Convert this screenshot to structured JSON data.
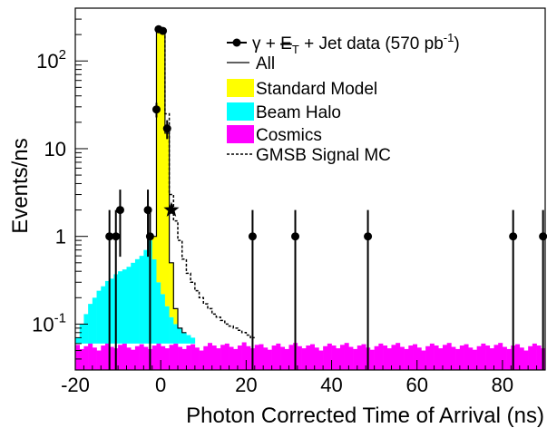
{
  "chart_data": {
    "type": "histogram",
    "xlabel": "Photon Corrected Time of Arrival (ns)",
    "ylabel": "Events/ns",
    "xlim": [
      -20,
      90
    ],
    "ylim": [
      0.03,
      400
    ],
    "yscale": "log",
    "x_ticks": [
      {
        "value": -20,
        "label": "-20"
      },
      {
        "value": 0,
        "label": "0"
      },
      {
        "value": 20,
        "label": "20"
      },
      {
        "value": 40,
        "label": "40"
      },
      {
        "value": 60,
        "label": "60"
      },
      {
        "value": 80,
        "label": "80"
      }
    ],
    "y_ticks": [
      {
        "value": 0.1,
        "base": "10",
        "exp": "-1"
      },
      {
        "value": 1,
        "base": "1",
        "exp": ""
      },
      {
        "value": 10,
        "base": "10",
        "exp": ""
      },
      {
        "value": 100,
        "base": "10",
        "exp": "2"
      }
    ],
    "legend": {
      "position": "top-right",
      "entries": [
        {
          "key": "data",
          "prefix": "γ + ",
          "met": "E",
          "met_sub": "T",
          "suffix": " + Jet data (570 pb",
          "sup": "-1",
          "tail": ")"
        },
        {
          "key": "all",
          "label": "All"
        },
        {
          "key": "sm",
          "label": "Standard Model"
        },
        {
          "key": "halo",
          "label": "Beam Halo"
        },
        {
          "key": "cosmics",
          "label": "Cosmics"
        },
        {
          "key": "gmsb",
          "label": "GMSB Signal MC"
        }
      ]
    },
    "colors": {
      "standard_model": "#ffff00",
      "beam_halo": "#00ffff",
      "cosmics": "#ff00ff",
      "all_line": "#000000",
      "gmsb_line": "#000000"
    },
    "bin_width": 1,
    "cosmics_level": 0.06,
    "cosmics_bins": [
      0.058,
      0.052,
      0.056,
      0.061,
      0.054,
      0.05,
      0.057,
      0.062,
      0.055,
      0.053,
      0.058,
      0.06,
      0.054,
      0.051,
      0.056,
      0.059,
      0.055,
      0.052,
      0.057,
      0.061,
      0.056,
      0.053,
      0.058,
      0.06,
      0.055,
      0.052,
      0.057,
      0.059,
      0.054,
      0.05,
      0.056,
      0.061,
      0.057,
      0.053,
      0.058,
      0.06,
      0.055,
      0.052,
      0.057,
      0.062,
      0.056,
      0.053,
      0.058,
      0.059,
      0.054,
      0.051,
      0.057,
      0.06,
      0.055,
      0.052,
      0.058,
      0.061,
      0.056,
      0.053,
      0.057,
      0.059,
      0.054,
      0.05,
      0.056,
      0.06,
      0.057,
      0.053,
      0.058,
      0.061,
      0.055,
      0.052,
      0.057,
      0.059,
      0.054,
      0.051,
      0.056,
      0.06,
      0.057,
      0.053,
      0.058,
      0.061,
      0.055,
      0.052,
      0.057,
      0.059,
      0.054,
      0.05,
      0.056,
      0.06,
      0.057,
      0.053,
      0.058,
      0.061,
      0.055,
      0.052,
      0.057,
      0.059,
      0.054,
      0.051,
      0.056,
      0.06,
      0.057,
      0.053,
      0.058,
      0.061,
      0.055,
      0.052,
      0.057,
      0.059,
      0.054,
      0.05,
      0.056,
      0.06,
      0.057,
      0.053
    ],
    "beam_halo_total": [
      {
        "x": -20,
        "y": 0.07
      },
      {
        "x": -19,
        "y": 0.1
      },
      {
        "x": -18,
        "y": 0.13
      },
      {
        "x": -17,
        "y": 0.17
      },
      {
        "x": -16,
        "y": 0.2
      },
      {
        "x": -15,
        "y": 0.24
      },
      {
        "x": -14,
        "y": 0.27
      },
      {
        "x": -13,
        "y": 0.31
      },
      {
        "x": -12,
        "y": 0.33
      },
      {
        "x": -11,
        "y": 0.37
      },
      {
        "x": -10,
        "y": 0.4
      },
      {
        "x": -9,
        "y": 0.42
      },
      {
        "x": -8,
        "y": 0.45
      },
      {
        "x": -7,
        "y": 0.5
      },
      {
        "x": -6,
        "y": 0.55
      },
      {
        "x": -5,
        "y": 0.6
      },
      {
        "x": -4,
        "y": 0.7
      },
      {
        "x": -3,
        "y": 0.9
      },
      {
        "x": -2,
        "y": 0.55
      },
      {
        "x": -1,
        "y": 0.3
      },
      {
        "x": 0,
        "y": 0.22
      },
      {
        "x": 1,
        "y": 0.16
      },
      {
        "x": 2,
        "y": 0.12
      },
      {
        "x": 3,
        "y": 0.1
      },
      {
        "x": 4,
        "y": 0.09
      },
      {
        "x": 5,
        "y": 0.08
      },
      {
        "x": 6,
        "y": 0.075
      },
      {
        "x": 7,
        "y": 0.07
      }
    ],
    "all_total": [
      {
        "x": -2,
        "y": 1.0
      },
      {
        "x": -1,
        "y": 220
      },
      {
        "x": 0,
        "y": 220
      },
      {
        "x": 1,
        "y": 15
      },
      {
        "x": 2,
        "y": 0.5
      },
      {
        "x": 3,
        "y": 0.15
      },
      {
        "x": 4,
        "y": 0.09
      },
      {
        "x": 5,
        "y": 0.08
      }
    ],
    "gmsb": [
      {
        "x": 0,
        "y": 220
      },
      {
        "x": 1,
        "y": 25
      },
      {
        "x": 2,
        "y": 3
      },
      {
        "x": 3,
        "y": 1.5
      },
      {
        "x": 4,
        "y": 0.9
      },
      {
        "x": 5,
        "y": 0.55
      },
      {
        "x": 6,
        "y": 0.38
      },
      {
        "x": 7,
        "y": 0.3
      },
      {
        "x": 8,
        "y": 0.24
      },
      {
        "x": 9,
        "y": 0.2
      },
      {
        "x": 10,
        "y": 0.17
      },
      {
        "x": 11,
        "y": 0.15
      },
      {
        "x": 12,
        "y": 0.13
      },
      {
        "x": 13,
        "y": 0.12
      },
      {
        "x": 14,
        "y": 0.11
      },
      {
        "x": 15,
        "y": 0.1
      },
      {
        "x": 16,
        "y": 0.095
      },
      {
        "x": 17,
        "y": 0.09
      },
      {
        "x": 18,
        "y": 0.085
      },
      {
        "x": 19,
        "y": 0.08
      },
      {
        "x": 20,
        "y": 0.075
      },
      {
        "x": 21,
        "y": 0.07
      }
    ],
    "data_points": [
      {
        "x": -12,
        "y": 1
      },
      {
        "x": -10.5,
        "y": 1
      },
      {
        "x": -9.5,
        "y": 2
      },
      {
        "x": -3,
        "y": 2
      },
      {
        "x": -2.5,
        "y": 1
      },
      {
        "x": -1,
        "y": 28
      },
      {
        "x": -0.5,
        "y": 230
      },
      {
        "x": 0.5,
        "y": 220
      },
      {
        "x": 1.5,
        "y": 17
      },
      {
        "x": 21.5,
        "y": 1
      },
      {
        "x": 31.5,
        "y": 1
      },
      {
        "x": 48.5,
        "y": 1
      },
      {
        "x": 82.5,
        "y": 1
      },
      {
        "x": 89.5,
        "y": 1
      }
    ],
    "star_marker": {
      "x": 2.5,
      "y": 2
    }
  }
}
